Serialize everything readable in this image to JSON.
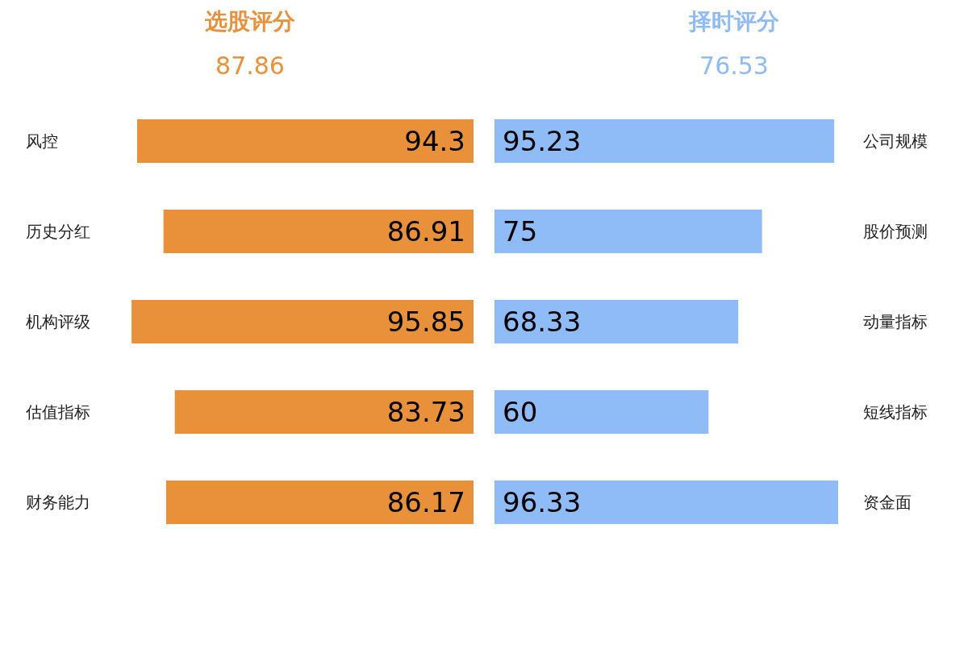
{
  "chart_data": [
    {
      "type": "bar",
      "orientation": "horizontal",
      "title": "选股评分",
      "subtitle": "87.86",
      "categories": [
        "风控",
        "历史分红",
        "机构评级",
        "估值指标",
        "财务能力"
      ],
      "values": [
        94.3,
        86.91,
        95.85,
        83.73,
        86.17
      ],
      "color": "#e8913a",
      "data_labels": true
    },
    {
      "type": "bar",
      "orientation": "horizontal",
      "title": "择时评分",
      "subtitle": "76.53",
      "categories": [
        "公司规模",
        "股价预测",
        "动量指标",
        "短线指标",
        "资金面"
      ],
      "values": [
        95.23,
        75,
        68.33,
        60,
        96.33
      ],
      "color": "#8fbbf7",
      "data_labels": true
    }
  ]
}
